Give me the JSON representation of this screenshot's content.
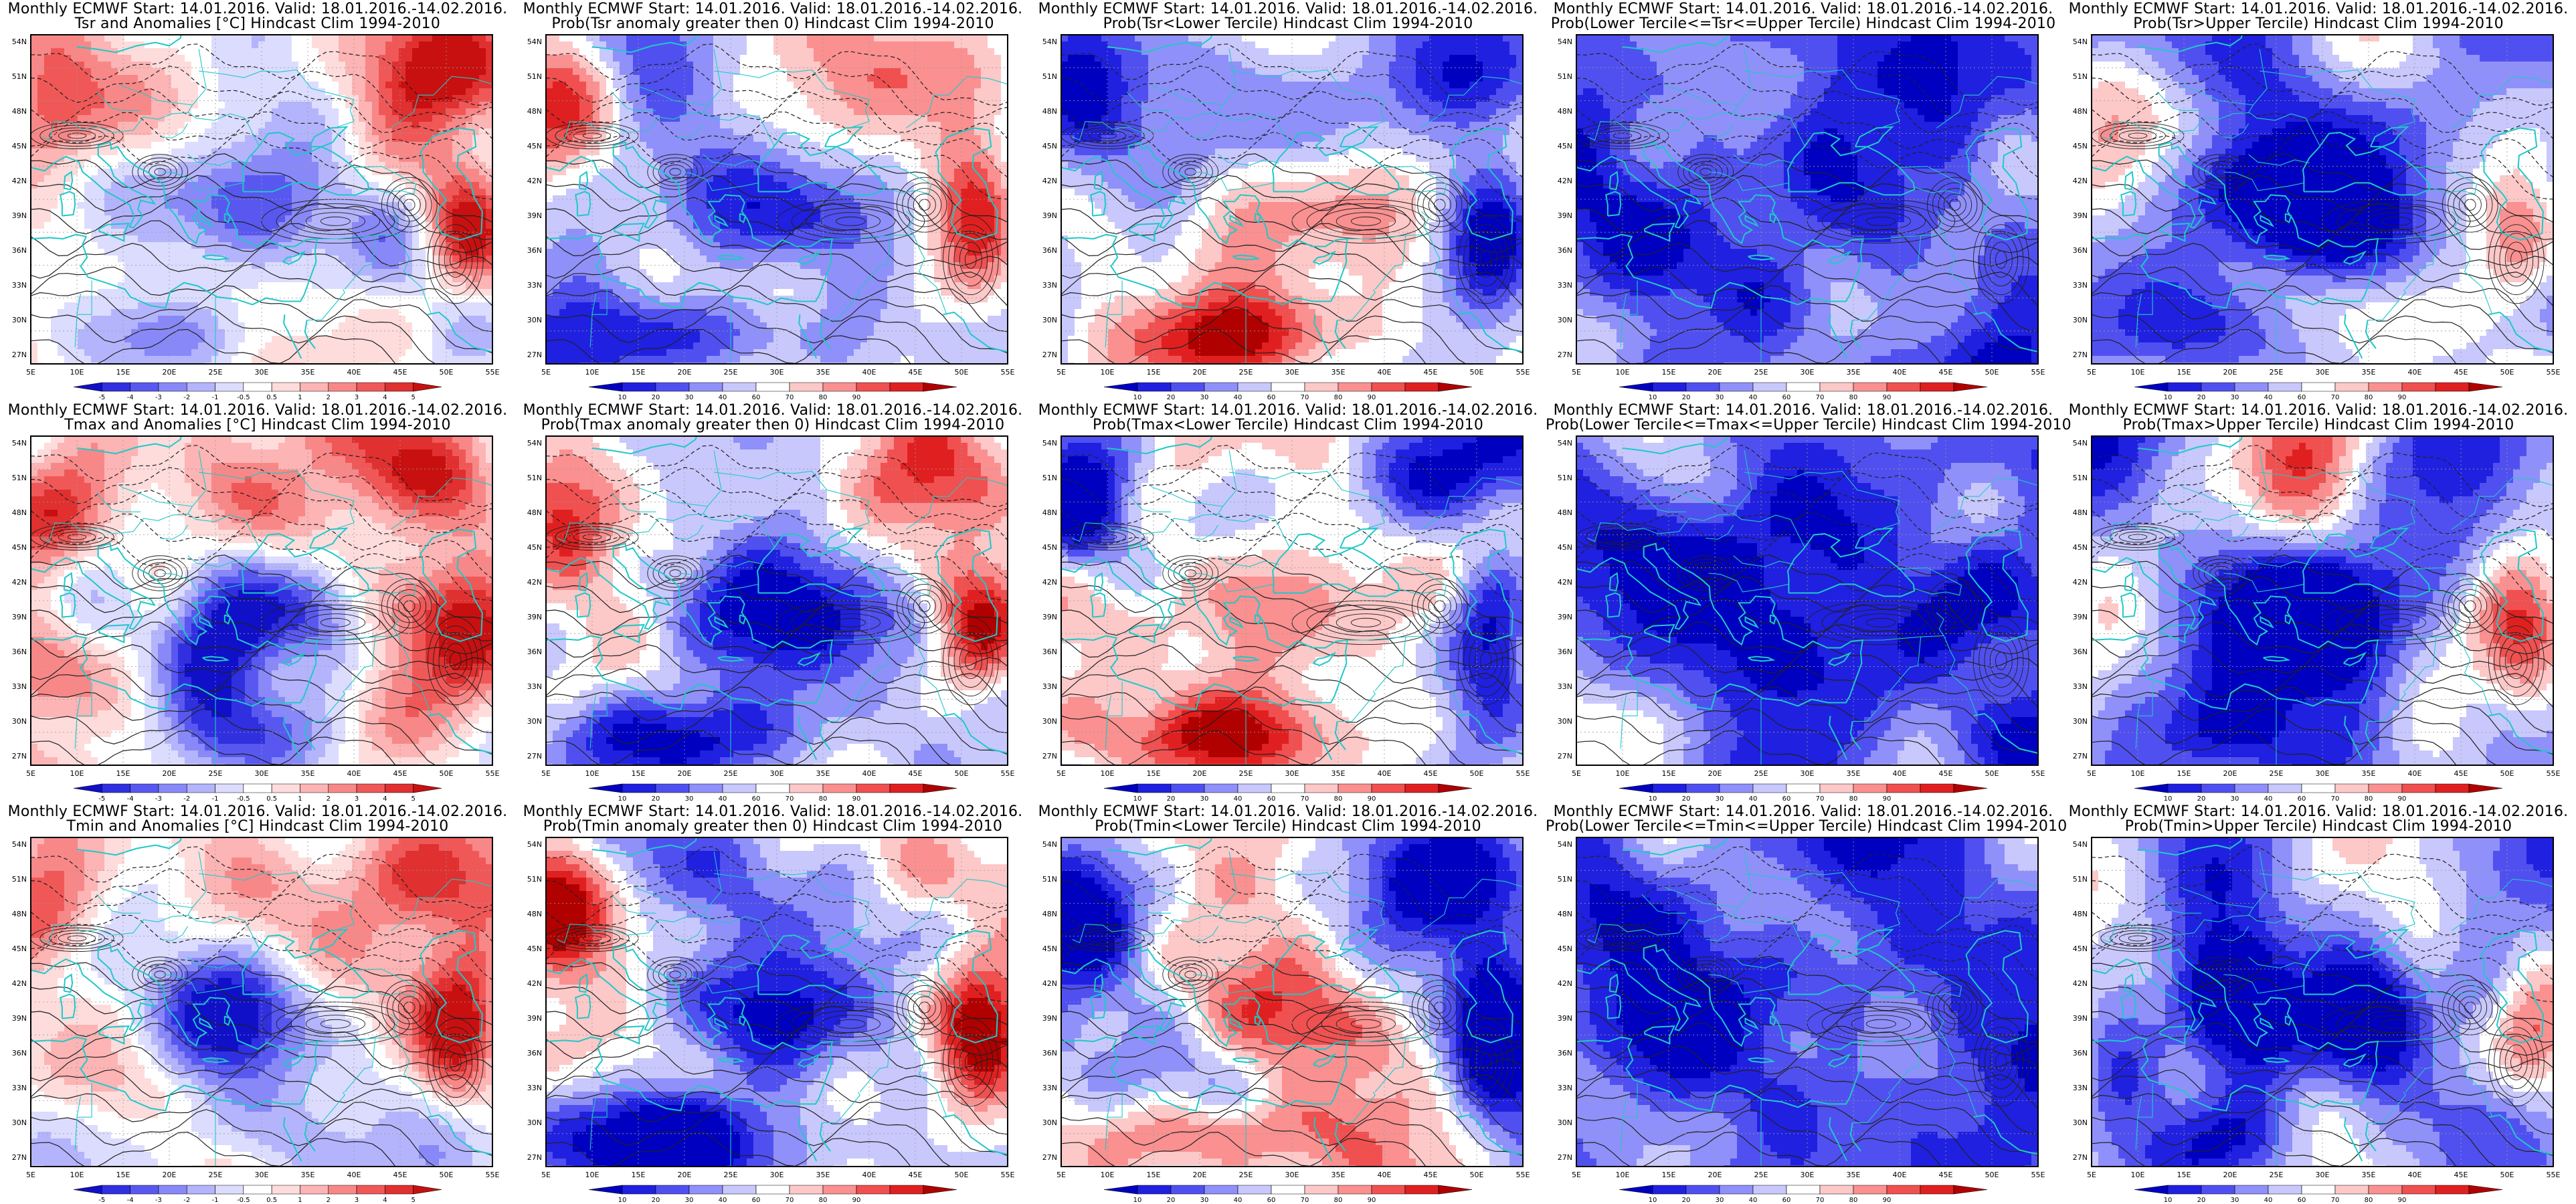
{
  "map": {
    "lat_ticks": [
      "54N",
      "51N",
      "48N",
      "45N",
      "42N",
      "39N",
      "36N",
      "33N",
      "30N",
      "27N"
    ],
    "lon_ticks": [
      "5E",
      "10E",
      "15E",
      "20E",
      "25E",
      "30E",
      "35E",
      "40E",
      "45E",
      "50E",
      "55E"
    ]
  },
  "colorbars": {
    "anomaly": {
      "labels": [
        "-5",
        "-4",
        "-3",
        "-2",
        "-1",
        "-0.5",
        "0.5",
        "1",
        "2",
        "3",
        "4",
        "5"
      ],
      "colors": [
        "#1010c8",
        "#3030e0",
        "#5858f0",
        "#8888f8",
        "#b4b4fc",
        "#dcdcfe",
        "#ffffff",
        "#fedcdc",
        "#fcb4b4",
        "#f88888",
        "#f05858",
        "#e03030",
        "#c81010"
      ]
    },
    "probability": {
      "labels": [
        "10",
        "20",
        "30",
        "40",
        "60",
        "70",
        "80",
        "90"
      ],
      "colors": [
        "#0000c0",
        "#2020e0",
        "#5050f0",
        "#9090fa",
        "#c8c8fd",
        "#ffffff",
        "#fdc8c8",
        "#fa9090",
        "#f05050",
        "#e02020",
        "#b00000"
      ]
    }
  },
  "panels": [
    {
      "line1": "Monthly ECMWF Start: 14.01.2016. Valid: 18.01.2016.-14.02.2016.",
      "line2": "Tsr and Anomalies [°C] Hindcast Clim 1994-2010",
      "bar": "anomaly",
      "style": "anom"
    },
    {
      "line1": "Monthly ECMWF Start: 14.01.2016. Valid: 18.01.2016.-14.02.2016.",
      "line2": "Prob(Tsr anomaly greater then 0) Hindcast Clim 1994-2010",
      "bar": "probability",
      "style": "probpos"
    },
    {
      "line1": "Monthly ECMWF Start: 14.01.2016. Valid: 18.01.2016.-14.02.2016.",
      "line2": "Prob(Tsr<Lower Tercile) Hindcast Clim 1994-2010",
      "bar": "probability",
      "style": "lower"
    },
    {
      "line1": "Monthly ECMWF Start: 14.01.2016. Valid: 18.01.2016.-14.02.2016.",
      "line2": "Prob(Lower Tercile<=Tsr<=Upper Tercile) Hindcast Clim 1994-2010",
      "bar": "probability",
      "style": "middle"
    },
    {
      "line1": "Monthly ECMWF Start: 14.01.2016. Valid: 18.01.2016.-14.02.2016.",
      "line2": "Prob(Tsr>Upper Tercile) Hindcast Clim 1994-2010",
      "bar": "probability",
      "style": "upper"
    },
    {
      "line1": "Monthly ECMWF Start: 14.01.2016. Valid: 18.01.2016.-14.02.2016.",
      "line2": "Tmax and Anomalies [°C] Hindcast Clim 1994-2010",
      "bar": "anomaly",
      "style": "anom"
    },
    {
      "line1": "Monthly ECMWF Start: 14.01.2016. Valid: 18.01.2016.-14.02.2016.",
      "line2": "Prob(Tmax anomaly greater then 0) Hindcast Clim 1994-2010",
      "bar": "probability",
      "style": "probpos"
    },
    {
      "line1": "Monthly ECMWF Start: 14.01.2016. Valid: 18.01.2016.-14.02.2016.",
      "line2": "Prob(Tmax<Lower Tercile) Hindcast Clim 1994-2010",
      "bar": "probability",
      "style": "lower"
    },
    {
      "line1": "Monthly ECMWF Start: 14.01.2016. Valid: 18.01.2016.-14.02.2016.",
      "line2": "Prob(Lower Tercile<=Tmax<=Upper Tercile) Hindcast Clim 1994-2010",
      "bar": "probability",
      "style": "middle"
    },
    {
      "line1": "Monthly ECMWF Start: 14.01.2016. Valid: 18.01.2016.-14.02.2016.",
      "line2": "Prob(Tmax>Upper Tercile) Hindcast Clim 1994-2010",
      "bar": "probability",
      "style": "upper"
    },
    {
      "line1": "Monthly ECMWF Start: 14.01.2016. Valid: 18.01.2016.-14.02.2016.",
      "line2": "Tmin and Anomalies [°C] Hindcast Clim 1994-2010",
      "bar": "anomaly",
      "style": "anom"
    },
    {
      "line1": "Monthly ECMWF Start: 14.01.2016. Valid: 18.01.2016.-14.02.2016.",
      "line2": "Prob(Tmin anomaly greater then 0) Hindcast Clim 1994-2010",
      "bar": "probability",
      "style": "probpos"
    },
    {
      "line1": "Monthly ECMWF Start: 14.01.2016. Valid: 18.01.2016.-14.02.2016.",
      "line2": "Prob(Tmin<Lower Tercile) Hindcast Clim 1994-2010",
      "bar": "probability",
      "style": "lower"
    },
    {
      "line1": "Monthly ECMWF Start: 14.01.2016. Valid: 18.01.2016.-14.02.2016.",
      "line2": "Prob(Lower Tercile<=Tmin<=Upper Tercile) Hindcast Clim 1994-2010",
      "bar": "probability",
      "style": "middle"
    },
    {
      "line1": "Monthly ECMWF Start: 14.01.2016. Valid: 18.01.2016.-14.02.2016.",
      "line2": "Prob(Tmin>Upper Tercile) Hindcast Clim 1994-2010",
      "bar": "probability",
      "style": "upper"
    }
  ],
  "colors": {
    "coastline": "#20c8c8",
    "contour": "#202020",
    "gridline": "#9a9a9a"
  }
}
